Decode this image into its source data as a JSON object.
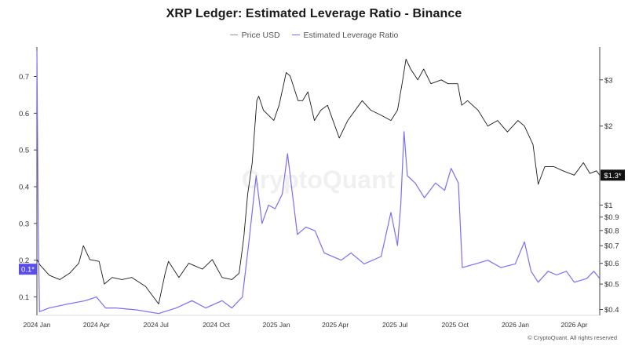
{
  "chart_data": {
    "type": "line",
    "title": "XRP Ledger: Estimated Leverage Ratio - Binance",
    "watermark": "CryptoQuant",
    "footer": "© CryptoQuant. All rights reserved",
    "x_ticks": [
      "2024 Jan",
      "2024 Apr",
      "2024 Jul",
      "2024 Oct",
      "2025 Jan",
      "2025 Apr",
      "2025 Jul",
      "2025 Oct",
      "2026 Jan",
      "2026 Apr"
    ],
    "x_range": [
      "2024-01-01",
      "2026-05-10"
    ],
    "y_left": {
      "label": "",
      "scale": "linear",
      "range": [
        0.05,
        0.78
      ],
      "ticks": [
        "0.1",
        "0.2",
        "0.3",
        "0.4",
        "0.5",
        "0.6",
        "0.7"
      ]
    },
    "y_right": {
      "label": "",
      "scale": "log",
      "range": [
        0.38,
        4.0
      ],
      "ticks": [
        "$0.4",
        "$0.5",
        "$0.6",
        "$0.7",
        "$0.8",
        "$0.9",
        "$1",
        "$2",
        "$3"
      ]
    },
    "current_left_label": "0.1*",
    "current_right_label": "$1.3*",
    "legend_position": "top-center",
    "grid": false,
    "series": [
      {
        "name": "Price USD",
        "axis": "right",
        "color": "#1a1a1a",
        "points": [
          [
            "2024-01-01",
            0.62
          ],
          [
            "2024-01-06",
            0.59
          ],
          [
            "2024-01-20",
            0.54
          ],
          [
            "2024-02-05",
            0.52
          ],
          [
            "2024-02-20",
            0.55
          ],
          [
            "2024-03-05",
            0.6
          ],
          [
            "2024-03-12",
            0.7
          ],
          [
            "2024-03-22",
            0.62
          ],
          [
            "2024-04-05",
            0.61
          ],
          [
            "2024-04-13",
            0.5
          ],
          [
            "2024-04-25",
            0.53
          ],
          [
            "2024-05-10",
            0.52
          ],
          [
            "2024-05-25",
            0.53
          ],
          [
            "2024-06-15",
            0.49
          ],
          [
            "2024-07-05",
            0.42
          ],
          [
            "2024-07-15",
            0.55
          ],
          [
            "2024-07-20",
            0.61
          ],
          [
            "2024-08-05",
            0.53
          ],
          [
            "2024-08-20",
            0.6
          ],
          [
            "2024-09-10",
            0.57
          ],
          [
            "2024-09-25",
            0.62
          ],
          [
            "2024-10-10",
            0.53
          ],
          [
            "2024-10-25",
            0.52
          ],
          [
            "2024-11-05",
            0.55
          ],
          [
            "2024-11-12",
            0.75
          ],
          [
            "2024-11-18",
            1.1
          ],
          [
            "2024-11-25",
            1.45
          ],
          [
            "2024-12-02",
            2.5
          ],
          [
            "2024-12-05",
            2.6
          ],
          [
            "2024-12-12",
            2.3
          ],
          [
            "2024-12-20",
            2.2
          ],
          [
            "2024-12-28",
            2.1
          ],
          [
            "2025-01-05",
            2.4
          ],
          [
            "2025-01-16",
            3.2
          ],
          [
            "2025-01-22",
            3.1
          ],
          [
            "2025-02-03",
            2.5
          ],
          [
            "2025-02-10",
            2.5
          ],
          [
            "2025-02-18",
            2.7
          ],
          [
            "2025-02-28",
            2.1
          ],
          [
            "2025-03-10",
            2.3
          ],
          [
            "2025-03-20",
            2.4
          ],
          [
            "2025-04-07",
            1.8
          ],
          [
            "2025-04-20",
            2.1
          ],
          [
            "2025-05-12",
            2.5
          ],
          [
            "2025-05-25",
            2.3
          ],
          [
            "2025-06-10",
            2.2
          ],
          [
            "2025-06-25",
            2.1
          ],
          [
            "2025-07-05",
            2.3
          ],
          [
            "2025-07-12",
            2.9
          ],
          [
            "2025-07-18",
            3.6
          ],
          [
            "2025-07-25",
            3.3
          ],
          [
            "2025-08-05",
            3.0
          ],
          [
            "2025-08-14",
            3.3
          ],
          [
            "2025-08-25",
            2.9
          ],
          [
            "2025-09-10",
            3.0
          ],
          [
            "2025-09-20",
            2.9
          ],
          [
            "2025-10-05",
            2.9
          ],
          [
            "2025-10-11",
            2.4
          ],
          [
            "2025-10-20",
            2.5
          ],
          [
            "2025-11-05",
            2.3
          ],
          [
            "2025-11-20",
            2.0
          ],
          [
            "2025-12-05",
            2.1
          ],
          [
            "2025-12-20",
            1.9
          ],
          [
            "2026-01-05",
            2.1
          ],
          [
            "2026-01-15",
            2.0
          ],
          [
            "2026-01-28",
            1.7
          ],
          [
            "2026-02-05",
            1.2
          ],
          [
            "2026-02-15",
            1.4
          ],
          [
            "2026-03-01",
            1.4
          ],
          [
            "2026-03-15",
            1.35
          ],
          [
            "2026-04-01",
            1.3
          ],
          [
            "2026-04-15",
            1.45
          ],
          [
            "2026-04-25",
            1.32
          ],
          [
            "2026-05-05",
            1.35
          ],
          [
            "2026-05-10",
            1.3
          ]
        ]
      },
      {
        "name": "Estimated Leverage Ratio",
        "axis": "left",
        "color": "#7b6ef6",
        "points": [
          [
            "2024-01-01",
            0.77
          ],
          [
            "2024-01-03",
            0.3
          ],
          [
            "2024-01-05",
            0.06
          ],
          [
            "2024-01-20",
            0.07
          ],
          [
            "2024-02-15",
            0.08
          ],
          [
            "2024-03-15",
            0.09
          ],
          [
            "2024-04-01",
            0.1
          ],
          [
            "2024-04-15",
            0.07
          ],
          [
            "2024-05-01",
            0.07
          ],
          [
            "2024-06-01",
            0.065
          ],
          [
            "2024-07-05",
            0.055
          ],
          [
            "2024-08-01",
            0.07
          ],
          [
            "2024-08-25",
            0.09
          ],
          [
            "2024-09-15",
            0.07
          ],
          [
            "2024-10-10",
            0.09
          ],
          [
            "2024-10-25",
            0.07
          ],
          [
            "2024-11-10",
            0.1
          ],
          [
            "2024-11-20",
            0.25
          ],
          [
            "2024-12-01",
            0.43
          ],
          [
            "2024-12-10",
            0.3
          ],
          [
            "2024-12-20",
            0.35
          ],
          [
            "2024-12-30",
            0.34
          ],
          [
            "2025-01-10",
            0.38
          ],
          [
            "2025-01-18",
            0.49
          ],
          [
            "2025-02-02",
            0.27
          ],
          [
            "2025-02-15",
            0.29
          ],
          [
            "2025-03-01",
            0.28
          ],
          [
            "2025-03-15",
            0.22
          ],
          [
            "2025-04-10",
            0.2
          ],
          [
            "2025-04-25",
            0.22
          ],
          [
            "2025-05-15",
            0.19
          ],
          [
            "2025-06-10",
            0.21
          ],
          [
            "2025-06-25",
            0.33
          ],
          [
            "2025-07-05",
            0.24
          ],
          [
            "2025-07-10",
            0.35
          ],
          [
            "2025-07-15",
            0.55
          ],
          [
            "2025-07-20",
            0.43
          ],
          [
            "2025-08-01",
            0.41
          ],
          [
            "2025-08-15",
            0.37
          ],
          [
            "2025-09-01",
            0.41
          ],
          [
            "2025-09-15",
            0.39
          ],
          [
            "2025-09-25",
            0.45
          ],
          [
            "2025-10-06",
            0.41
          ],
          [
            "2025-10-12",
            0.18
          ],
          [
            "2025-11-01",
            0.19
          ],
          [
            "2025-11-20",
            0.2
          ],
          [
            "2025-12-10",
            0.18
          ],
          [
            "2026-01-01",
            0.19
          ],
          [
            "2026-01-15",
            0.25
          ],
          [
            "2026-01-25",
            0.17
          ],
          [
            "2026-02-05",
            0.14
          ],
          [
            "2026-02-20",
            0.17
          ],
          [
            "2026-03-05",
            0.16
          ],
          [
            "2026-03-20",
            0.17
          ],
          [
            "2026-04-01",
            0.14
          ],
          [
            "2026-04-20",
            0.15
          ],
          [
            "2026-05-01",
            0.17
          ],
          [
            "2026-05-10",
            0.15
          ]
        ]
      }
    ]
  }
}
